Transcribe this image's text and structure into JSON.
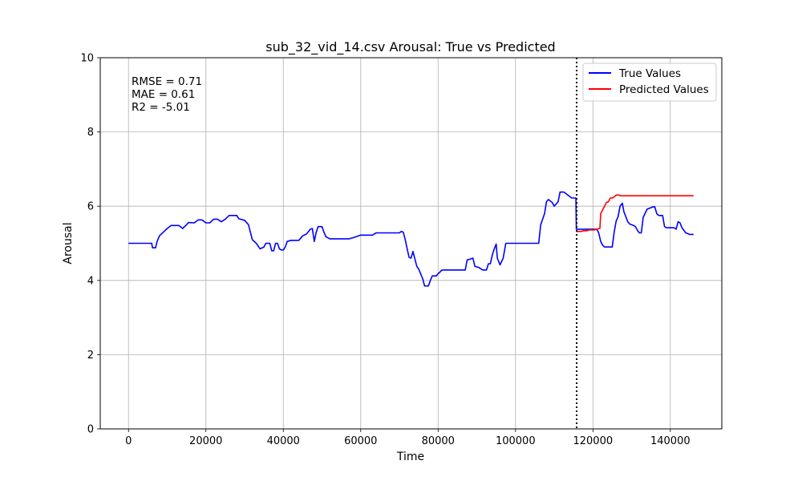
{
  "chart_data": {
    "type": "line",
    "title": "sub_32_vid_14.csv Arousal: True vs Predicted",
    "xlabel": "Time",
    "ylabel": "Arousal",
    "xlim": [
      -7300,
      153300
    ],
    "ylim": [
      0,
      10
    ],
    "x_ticks": [
      0,
      20000,
      40000,
      60000,
      80000,
      100000,
      120000,
      140000
    ],
    "x_tick_labels": [
      "0",
      "20000",
      "40000",
      "60000",
      "80000",
      "100000",
      "120000",
      "140000"
    ],
    "y_ticks": [
      0,
      2,
      4,
      6,
      8,
      10
    ],
    "y_tick_labels": [
      "0",
      "2",
      "4",
      "6",
      "8",
      "10"
    ],
    "grid": true,
    "legend_position": "top-right",
    "vline": {
      "x": 115800,
      "style": "dotted",
      "color": "#000000"
    },
    "annotations": [
      "RMSE = 0.71",
      "MAE = 0.61",
      "R2 = -5.01"
    ],
    "series": [
      {
        "name": "True Values",
        "color": "#0000ff",
        "points": [
          [
            0,
            5.0
          ],
          [
            6000,
            5.0
          ],
          [
            6200,
            4.88
          ],
          [
            7000,
            4.88
          ],
          [
            7400,
            5.05
          ],
          [
            8000,
            5.2
          ],
          [
            9000,
            5.3
          ],
          [
            10000,
            5.4
          ],
          [
            11000,
            5.48
          ],
          [
            13000,
            5.48
          ],
          [
            14000,
            5.4
          ],
          [
            15000,
            5.5
          ],
          [
            15500,
            5.56
          ],
          [
            17000,
            5.55
          ],
          [
            18000,
            5.63
          ],
          [
            19000,
            5.63
          ],
          [
            20000,
            5.55
          ],
          [
            21000,
            5.55
          ],
          [
            22000,
            5.65
          ],
          [
            23000,
            5.65
          ],
          [
            24000,
            5.58
          ],
          [
            25000,
            5.65
          ],
          [
            26000,
            5.75
          ],
          [
            28000,
            5.75
          ],
          [
            28500,
            5.66
          ],
          [
            30000,
            5.62
          ],
          [
            31000,
            5.5
          ],
          [
            31500,
            5.3
          ],
          [
            32000,
            5.1
          ],
          [
            33000,
            5.0
          ],
          [
            34000,
            4.85
          ],
          [
            35000,
            4.9
          ],
          [
            35500,
            5.0
          ],
          [
            36500,
            5.0
          ],
          [
            37000,
            4.8
          ],
          [
            37500,
            4.8
          ],
          [
            38000,
            5.0
          ],
          [
            38500,
            5.0
          ],
          [
            39000,
            4.85
          ],
          [
            39500,
            4.82
          ],
          [
            40000,
            4.82
          ],
          [
            40500,
            4.9
          ],
          [
            41000,
            5.05
          ],
          [
            42000,
            5.08
          ],
          [
            44000,
            5.08
          ],
          [
            45000,
            5.2
          ],
          [
            46000,
            5.25
          ],
          [
            47000,
            5.38
          ],
          [
            47500,
            5.4
          ],
          [
            48000,
            5.05
          ],
          [
            48500,
            5.3
          ],
          [
            49000,
            5.45
          ],
          [
            50000,
            5.45
          ],
          [
            50500,
            5.3
          ],
          [
            51000,
            5.18
          ],
          [
            52000,
            5.12
          ],
          [
            57000,
            5.12
          ],
          [
            58000,
            5.15
          ],
          [
            60000,
            5.22
          ],
          [
            63000,
            5.22
          ],
          [
            64000,
            5.28
          ],
          [
            70000,
            5.28
          ],
          [
            70500,
            5.32
          ],
          [
            71000,
            5.3
          ],
          [
            71500,
            5.1
          ],
          [
            72000,
            4.85
          ],
          [
            72500,
            4.62
          ],
          [
            73000,
            4.6
          ],
          [
            73500,
            4.78
          ],
          [
            74000,
            4.58
          ],
          [
            74500,
            4.38
          ],
          [
            75000,
            4.3
          ],
          [
            76000,
            4.05
          ],
          [
            76500,
            3.85
          ],
          [
            77500,
            3.85
          ],
          [
            78000,
            4.0
          ],
          [
            78500,
            4.12
          ],
          [
            79500,
            4.12
          ],
          [
            80000,
            4.18
          ],
          [
            81000,
            4.28
          ],
          [
            87000,
            4.28
          ],
          [
            87500,
            4.55
          ],
          [
            88500,
            4.58
          ],
          [
            89000,
            4.6
          ],
          [
            89500,
            4.38
          ],
          [
            90500,
            4.35
          ],
          [
            91500,
            4.28
          ],
          [
            92500,
            4.28
          ],
          [
            93000,
            4.45
          ],
          [
            93500,
            4.45
          ],
          [
            94000,
            4.68
          ],
          [
            94500,
            4.85
          ],
          [
            95000,
            4.98
          ],
          [
            95300,
            4.6
          ],
          [
            96000,
            4.42
          ],
          [
            96800,
            4.6
          ],
          [
            97500,
            5.0
          ],
          [
            106000,
            5.0
          ],
          [
            106500,
            5.5
          ],
          [
            107000,
            5.65
          ],
          [
            107500,
            5.8
          ],
          [
            108000,
            6.12
          ],
          [
            108500,
            6.18
          ],
          [
            109500,
            6.1
          ],
          [
            110000,
            6.0
          ],
          [
            111000,
            6.12
          ],
          [
            111500,
            6.38
          ],
          [
            112500,
            6.38
          ],
          [
            113500,
            6.3
          ],
          [
            114500,
            6.22
          ],
          [
            115600,
            6.22
          ],
          [
            115700,
            5.38
          ],
          [
            121000,
            5.38
          ],
          [
            121500,
            5.28
          ],
          [
            122000,
            5.05
          ],
          [
            122500,
            4.95
          ],
          [
            123000,
            4.9
          ],
          [
            125000,
            4.9
          ],
          [
            125500,
            5.3
          ],
          [
            126000,
            5.6
          ],
          [
            126500,
            5.72
          ],
          [
            127000,
            6.0
          ],
          [
            127600,
            6.08
          ],
          [
            128000,
            5.85
          ],
          [
            128500,
            5.72
          ],
          [
            129000,
            5.58
          ],
          [
            129500,
            5.52
          ],
          [
            130500,
            5.48
          ],
          [
            131000,
            5.45
          ],
          [
            131500,
            5.35
          ],
          [
            132000,
            5.28
          ],
          [
            132500,
            5.28
          ],
          [
            133000,
            5.7
          ],
          [
            134000,
            5.92
          ],
          [
            135500,
            5.98
          ],
          [
            136000,
            5.98
          ],
          [
            136500,
            5.8
          ],
          [
            137000,
            5.75
          ],
          [
            138000,
            5.75
          ],
          [
            138500,
            5.45
          ],
          [
            139000,
            5.42
          ],
          [
            141000,
            5.42
          ],
          [
            141500,
            5.38
          ],
          [
            142000,
            5.58
          ],
          [
            142500,
            5.55
          ],
          [
            143000,
            5.42
          ],
          [
            144000,
            5.28
          ],
          [
            145000,
            5.24
          ],
          [
            146000,
            5.24
          ]
        ]
      },
      {
        "name": "Predicted Values",
        "color": "#ff0000",
        "points": [
          [
            115700,
            5.32
          ],
          [
            117000,
            5.32
          ],
          [
            117500,
            5.34
          ],
          [
            118500,
            5.34
          ],
          [
            119000,
            5.36
          ],
          [
            120500,
            5.36
          ],
          [
            121000,
            5.38
          ],
          [
            121800,
            5.4
          ],
          [
            122000,
            5.8
          ],
          [
            122500,
            5.9
          ],
          [
            123000,
            6.0
          ],
          [
            123500,
            6.1
          ],
          [
            124000,
            6.12
          ],
          [
            124500,
            6.22
          ],
          [
            125000,
            6.22
          ],
          [
            125500,
            6.25
          ],
          [
            126000,
            6.3
          ],
          [
            126800,
            6.3
          ],
          [
            127000,
            6.28
          ],
          [
            146000,
            6.28
          ]
        ]
      }
    ]
  }
}
